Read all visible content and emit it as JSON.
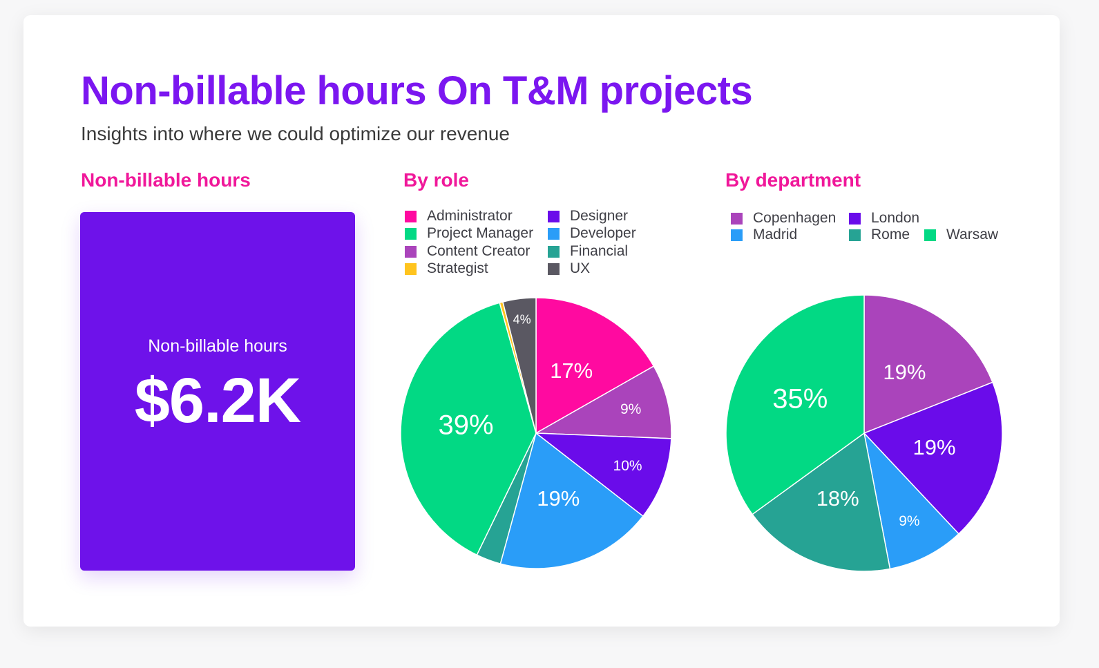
{
  "header": {
    "title": "Non-billable hours On T&M projects",
    "subtitle": "Insights into where we could optimize our revenue"
  },
  "sections": {
    "kpi_title": "Non-billable hours",
    "role_title": "By role",
    "department_title": "By department"
  },
  "kpi": {
    "label": "Non-billable hours",
    "value": "$6.2K",
    "background": "#6E12EA"
  },
  "colors": {
    "title": "#7B16F0",
    "section_title": "#F0189A"
  },
  "chart_data": [
    {
      "type": "pie",
      "title": "By role",
      "start_angle_deg": 0,
      "direction": "clockwise",
      "legend_columns": 2,
      "legend_placement": "top",
      "categories": [
        "Administrator",
        "Designer",
        "Project Manager",
        "Developer",
        "Content Creator",
        "Financial",
        "Strategist",
        "UX"
      ],
      "colors": {
        "Administrator": "#FF0AA0",
        "Designer": "#6A0CEA",
        "Project Manager": "#02D984",
        "Developer": "#2A9DF8",
        "Content Creator": "#AA44BB",
        "Financial": "#26A394",
        "Strategist": "#FFC41E",
        "UX": "#5A5862"
      },
      "slices": [
        {
          "label": "Administrator",
          "value": 17,
          "display": "17%"
        },
        {
          "label": "Content Creator",
          "value": 9,
          "display": "9%"
        },
        {
          "label": "Designer",
          "value": 10,
          "display": "10%"
        },
        {
          "label": "Developer",
          "value": 19,
          "display": "19%"
        },
        {
          "label": "Financial",
          "value": 3,
          "display": ""
        },
        {
          "label": "Project Manager",
          "value": 39,
          "display": "39%"
        },
        {
          "label": "Strategist",
          "value": 0.4,
          "display": ""
        },
        {
          "label": "UX",
          "value": 4,
          "display": "4%"
        }
      ]
    },
    {
      "type": "pie",
      "title": "By department",
      "start_angle_deg": 0,
      "direction": "clockwise",
      "legend_columns": 3,
      "legend_placement": "top",
      "categories": [
        "Copenhagen",
        "London",
        "Madrid",
        "Rome",
        "Warsaw"
      ],
      "colors": {
        "Copenhagen": "#AA44BB",
        "London": "#6A0CEA",
        "Madrid": "#2A9DF8",
        "Rome": "#26A394",
        "Warsaw": "#02D984"
      },
      "slices": [
        {
          "label": "Copenhagen",
          "value": 19,
          "display": "19%"
        },
        {
          "label": "London",
          "value": 19,
          "display": "19%"
        },
        {
          "label": "Madrid",
          "value": 9,
          "display": "9%"
        },
        {
          "label": "Rome",
          "value": 18,
          "display": "18%"
        },
        {
          "label": "Warsaw",
          "value": 35,
          "display": "35%"
        }
      ]
    }
  ]
}
